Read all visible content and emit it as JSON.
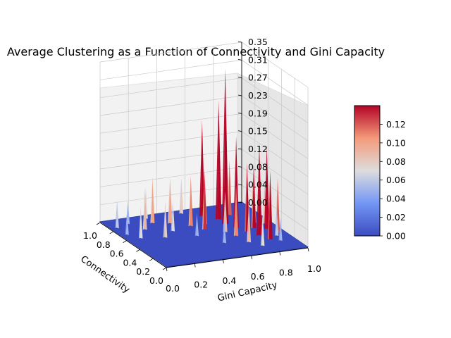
{
  "chart_data": {
    "type": "surface3d",
    "title": "Average Clustering as a Function of Connectivity and Gini Capacity",
    "xlabel": "Connectivity",
    "ylabel": "Gini Capacity",
    "zlabel": "",
    "xlim": [
      0,
      1
    ],
    "ylim": [
      0,
      1
    ],
    "zlim": [
      0,
      0.35
    ],
    "xticks": [
      "0.0",
      "0.2",
      "0.4",
      "0.6",
      "0.8",
      "1.0"
    ],
    "yticks": [
      "0.0",
      "0.2",
      "0.4",
      "0.6",
      "0.8",
      "1.0"
    ],
    "zticks": [
      "0.00",
      "0.04",
      "0.08",
      "0.12",
      "0.15",
      "0.19",
      "0.23",
      "0.27",
      "0.31",
      "0.35"
    ],
    "colorbar": {
      "colormap": "coolwarm",
      "range": [
        0,
        0.14
      ],
      "ticks": [
        "0.00",
        "0.02",
        "0.04",
        "0.06",
        "0.08",
        "0.10",
        "0.12"
      ]
    },
    "grid": true,
    "peaks": [
      {
        "x": 0.85,
        "y": 0.05,
        "z": 0.06
      },
      {
        "x": 0.7,
        "y": 0.05,
        "z": 0.05
      },
      {
        "x": 0.6,
        "y": 0.1,
        "z": 0.07
      },
      {
        "x": 0.9,
        "y": 0.15,
        "z": 0.05
      },
      {
        "x": 0.75,
        "y": 0.2,
        "z": 0.09
      },
      {
        "x": 0.55,
        "y": 0.25,
        "z": 0.08
      },
      {
        "x": 0.95,
        "y": 0.3,
        "z": 0.07
      },
      {
        "x": 0.85,
        "y": 0.3,
        "z": 0.1
      },
      {
        "x": 0.65,
        "y": 0.35,
        "z": 0.07
      },
      {
        "x": 0.8,
        "y": 0.4,
        "z": 0.1
      },
      {
        "x": 0.9,
        "y": 0.45,
        "z": 0.06
      },
      {
        "x": 0.5,
        "y": 0.45,
        "z": 0.05
      },
      {
        "x": 0.7,
        "y": 0.5,
        "z": 0.11
      },
      {
        "x": 0.95,
        "y": 0.55,
        "z": 0.08
      },
      {
        "x": 0.6,
        "y": 0.55,
        "z": 0.13
      },
      {
        "x": 0.3,
        "y": 0.55,
        "z": 0.05
      },
      {
        "x": 0.7,
        "y": 0.6,
        "z": 0.1
      },
      {
        "x": 0.85,
        "y": 0.65,
        "z": 0.21
      },
      {
        "x": 0.5,
        "y": 0.65,
        "z": 0.09
      },
      {
        "x": 0.4,
        "y": 0.68,
        "z": 0.11
      },
      {
        "x": 0.25,
        "y": 0.7,
        "z": 0.09
      },
      {
        "x": 0.75,
        "y": 0.72,
        "z": 0.26
      },
      {
        "x": 0.55,
        "y": 0.75,
        "z": 0.2
      },
      {
        "x": 0.65,
        "y": 0.72,
        "z": 0.34
      },
      {
        "x": 0.45,
        "y": 0.78,
        "z": 0.15
      },
      {
        "x": 0.15,
        "y": 0.75,
        "z": 0.07
      },
      {
        "x": 0.8,
        "y": 0.82,
        "z": 0.12
      },
      {
        "x": 0.5,
        "y": 0.85,
        "z": 0.14
      },
      {
        "x": 0.35,
        "y": 0.82,
        "z": 0.2
      },
      {
        "x": 0.25,
        "y": 0.85,
        "z": 0.15
      },
      {
        "x": 0.2,
        "y": 0.9,
        "z": 0.05
      },
      {
        "x": 0.6,
        "y": 0.9,
        "z": 0.1
      },
      {
        "x": 0.45,
        "y": 0.92,
        "z": 0.18
      },
      {
        "x": 0.35,
        "y": 0.95,
        "z": 0.12
      },
      {
        "x": 0.55,
        "y": 0.95,
        "z": 0.09
      },
      {
        "x": 0.3,
        "y": 0.92,
        "z": 0.06
      }
    ]
  }
}
